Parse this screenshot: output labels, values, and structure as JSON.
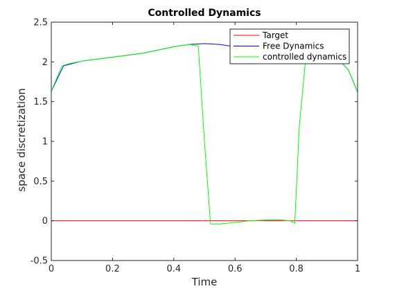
{
  "chart_data": {
    "type": "line",
    "title": "Controlled Dynamics",
    "xlabel": "Time",
    "ylabel": "space discretization",
    "xlim": [
      0,
      1
    ],
    "ylim": [
      -0.5,
      2.5
    ],
    "xticks": [
      0,
      0.2,
      0.4,
      0.6,
      0.8,
      1
    ],
    "yticks": [
      -0.5,
      0,
      0.5,
      1,
      1.5,
      2,
      2.5
    ],
    "xtick_labels": [
      "0",
      "0.2",
      "0.4",
      "0.6",
      "0.8",
      "1"
    ],
    "ytick_labels": [
      "-0.5",
      "0",
      "0.5",
      "1",
      "1.5",
      "2",
      "2.5"
    ],
    "grid": false,
    "legend_position": "top-right",
    "series": [
      {
        "name": "Target",
        "color": "#ff0000",
        "x": [
          0,
          1
        ],
        "y": [
          0,
          0
        ]
      },
      {
        "name": "Free Dynamics",
        "color": "#0000ff",
        "x": [
          0,
          0.04,
          0.1,
          0.2,
          0.3,
          0.35,
          0.4,
          0.45,
          0.5,
          0.55,
          0.6,
          0.65,
          0.7,
          0.75,
          0.8,
          0.85,
          0.9,
          0.95,
          0.97,
          1
        ],
        "y": [
          1.63,
          1.95,
          2.01,
          2.06,
          2.11,
          2.15,
          2.19,
          2.22,
          2.23,
          2.22,
          2.19,
          2.15,
          2.11,
          2.07,
          2.04,
          2.03,
          2.02,
          1.98,
          1.9,
          1.62
        ]
      },
      {
        "name": "controlled dynamics",
        "color": "#00ff00",
        "x": [
          0,
          0.035,
          0.06,
          0.1,
          0.2,
          0.3,
          0.4,
          0.45,
          0.48,
          0.5,
          0.52,
          0.55,
          0.6,
          0.65,
          0.7,
          0.75,
          0.78,
          0.795,
          0.81,
          0.83,
          0.85,
          0.9,
          0.95,
          0.97,
          1
        ],
        "y": [
          1.63,
          1.95,
          1.98,
          2.01,
          2.06,
          2.11,
          2.19,
          2.22,
          2.2,
          1.0,
          -0.04,
          -0.04,
          -0.02,
          0.0,
          0.01,
          0.01,
          0.0,
          -0.03,
          1.2,
          2.02,
          2.03,
          2.02,
          1.98,
          1.9,
          1.62
        ]
      }
    ]
  }
}
